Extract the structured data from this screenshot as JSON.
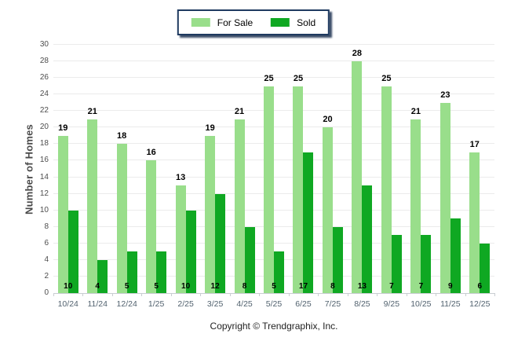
{
  "legend": {
    "for_sale_label": "For Sale",
    "sold_label": "Sold"
  },
  "y_axis": {
    "title": "Number of Homes"
  },
  "footer": {
    "copyright": "Copyright © Trendgraphix, Inc."
  },
  "colors": {
    "for_sale": "#99de8b",
    "sold": "#0fa822",
    "grid": "#ebebeb",
    "axis_line": "#c9cdd1",
    "legend_border": "#1f3a60",
    "value_label": "#000000",
    "y_tick_text": "#4d4d4d",
    "x_tick_text": "#52626f"
  },
  "chart_data": {
    "type": "bar",
    "title": "",
    "categories": [
      "10/24",
      "11/24",
      "12/24",
      "1/25",
      "2/25",
      "3/25",
      "4/25",
      "5/25",
      "6/25",
      "7/25",
      "8/25",
      "9/25",
      "10/25",
      "11/25",
      "12/25"
    ],
    "series": [
      {
        "name": "For Sale",
        "color": "#99de8b",
        "values": [
          19,
          21,
          18,
          16,
          13,
          19,
          21,
          25,
          25,
          20,
          28,
          25,
          21,
          23,
          17
        ]
      },
      {
        "name": "Sold",
        "color": "#0fa822",
        "values": [
          10,
          4,
          5,
          5,
          10,
          12,
          8,
          5,
          17,
          8,
          13,
          7,
          7,
          9,
          6
        ]
      }
    ],
    "xlabel": "",
    "ylabel": "Number of Homes",
    "ylim": [
      0,
      30
    ],
    "ytick_step": 2,
    "grid": true,
    "legend_position": "top-center",
    "value_labels": {
      "for_sale": "above-bar",
      "sold": "bottom-of-bar"
    }
  }
}
